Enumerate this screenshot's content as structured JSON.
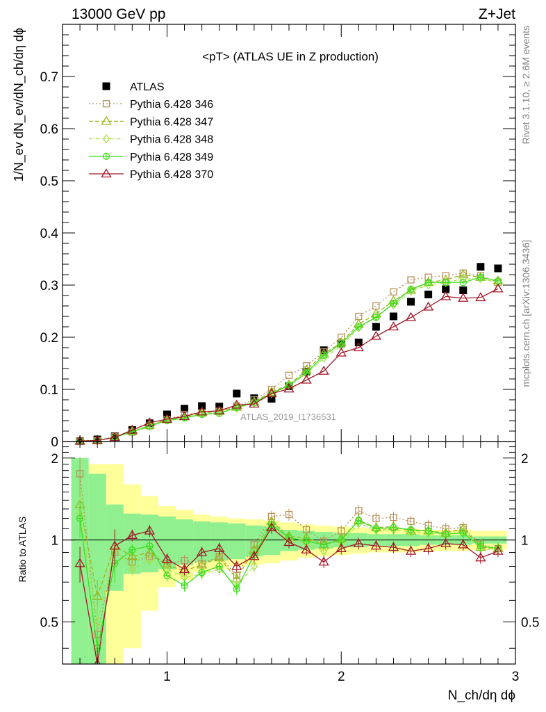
{
  "header": {
    "left": "13000 GeV pp",
    "right": "Z+Jet"
  },
  "side_labels": {
    "rivet": "Rivet 3.1.10, ≥ 2.6M events",
    "mcplots": "mcplots.cern.ch [arXiv:1306.3436]"
  },
  "watermark": "ATLAS_2019_I1736531",
  "chart_data": {
    "type": "scatter",
    "title": "<pT> (ATLAS UE in Z production)",
    "xlabel": "N_ch/dη dϕ",
    "ylabel": "1/N_ev dN_ev/dN_ch/dη dϕ",
    "ratio_ylabel": "Ratio to ATLAS",
    "xlim": [
      0.4,
      3.0
    ],
    "ylim": [
      0,
      0.8
    ],
    "ratio_ylim": [
      0.35,
      2.3
    ],
    "x_ticks": [
      1,
      2,
      3
    ],
    "y_ticks": [
      0,
      0.1,
      0.2,
      0.3,
      0.4,
      0.5,
      0.6,
      0.7
    ],
    "ratio_ticks": [
      0.5,
      1,
      2
    ],
    "x": [
      0.5,
      0.6,
      0.7,
      0.8,
      0.9,
      1.0,
      1.1,
      1.2,
      1.3,
      1.4,
      1.5,
      1.6,
      1.7,
      1.8,
      1.9,
      2.0,
      2.1,
      2.2,
      2.3,
      2.4,
      2.5,
      2.6,
      2.7,
      2.8,
      2.9
    ],
    "legend_position": "top-left",
    "series": [
      {
        "name": "ATLAS",
        "style": "data",
        "color": "#000000",
        "marker": "filled-square",
        "values": [
          0.001,
          0.004,
          0.01,
          0.022,
          0.035,
          0.052,
          0.063,
          0.068,
          0.067,
          0.092,
          0.083,
          0.082,
          0.106,
          0.134,
          0.175,
          0.188,
          0.19,
          0.22,
          0.24,
          0.268,
          0.282,
          0.292,
          0.29,
          0.335,
          0.332
        ]
      },
      {
        "name": "Pythia 6.428 346",
        "style": "mc",
        "color": "#b9925a",
        "marker": "open-square",
        "dash": "2,3",
        "values": [
          0.002,
          0.002,
          0.009,
          0.018,
          0.03,
          0.042,
          0.052,
          0.055,
          0.058,
          0.068,
          0.08,
          0.1,
          0.127,
          0.145,
          0.172,
          0.2,
          0.24,
          0.26,
          0.287,
          0.31,
          0.315,
          0.318,
          0.323,
          0.318,
          0.305
        ],
        "ratio": [
          1.75,
          0.45,
          0.9,
          0.83,
          0.87,
          0.82,
          0.84,
          0.82,
          0.87,
          0.74,
          0.96,
          1.22,
          1.24,
          1.09,
          0.99,
          1.08,
          1.28,
          1.2,
          1.21,
          1.17,
          1.13,
          1.1,
          1.11,
          0.96,
          0.93
        ]
      },
      {
        "name": "Pythia 6.428 347",
        "style": "mc",
        "color": "#9ab81f",
        "marker": "open-triangle",
        "dash": "6,3",
        "values": [
          0.001,
          0.002,
          0.009,
          0.019,
          0.031,
          0.042,
          0.048,
          0.055,
          0.058,
          0.066,
          0.076,
          0.095,
          0.109,
          0.137,
          0.168,
          0.19,
          0.225,
          0.245,
          0.27,
          0.29,
          0.305,
          0.31,
          0.32,
          0.315,
          0.308
        ],
        "ratio": [
          1.35,
          0.62,
          0.95,
          0.87,
          0.9,
          0.81,
          0.77,
          0.81,
          0.86,
          0.72,
          0.92,
          1.17,
          1.03,
          1.02,
          0.96,
          1.01,
          1.18,
          1.11,
          1.12,
          1.08,
          1.08,
          1.06,
          1.1,
          0.94,
          0.93
        ]
      },
      {
        "name": "Pythia 6.428 348",
        "style": "mc",
        "color": "#a5e04a",
        "marker": "open-diamond",
        "dash": "5,2,1,2",
        "values": [
          0.001,
          0.002,
          0.008,
          0.018,
          0.029,
          0.041,
          0.047,
          0.053,
          0.056,
          0.064,
          0.074,
          0.092,
          0.107,
          0.13,
          0.16,
          0.183,
          0.218,
          0.24,
          0.262,
          0.288,
          0.3,
          0.305,
          0.312,
          0.312,
          0.305
        ],
        "ratio": [
          1.25,
          0.5,
          0.92,
          0.78,
          0.84,
          0.78,
          0.73,
          0.75,
          0.78,
          0.68,
          0.8,
          1.13,
          1.0,
          0.97,
          0.91,
          0.97,
          1.15,
          1.09,
          1.09,
          1.07,
          1.06,
          1.05,
          1.07,
          0.93,
          0.92
        ]
      },
      {
        "name": "Pythia 6.428 349",
        "style": "mc",
        "color": "#3ddd1f",
        "marker": "open-circle-cross",
        "dash": "",
        "values": [
          0.001,
          0.002,
          0.008,
          0.019,
          0.03,
          0.04,
          0.045,
          0.052,
          0.054,
          0.065,
          0.075,
          0.092,
          0.108,
          0.132,
          0.165,
          0.188,
          0.22,
          0.238,
          0.265,
          0.292,
          0.305,
          0.305,
          0.305,
          0.315,
          0.308
        ],
        "ratio": [
          1.2,
          0.4,
          0.82,
          0.92,
          0.95,
          0.74,
          0.68,
          0.76,
          0.8,
          0.66,
          0.88,
          1.14,
          1.02,
          0.99,
          0.96,
          1.0,
          1.18,
          1.1,
          1.11,
          1.09,
          1.08,
          1.05,
          1.06,
          0.95,
          0.93
        ]
      },
      {
        "name": "Pythia 6.428 370",
        "style": "mc",
        "color": "#a01626",
        "marker": "open-triangle",
        "dash": "",
        "values": [
          0.001,
          0.002,
          0.008,
          0.022,
          0.036,
          0.043,
          0.048,
          0.057,
          0.059,
          0.07,
          0.072,
          0.092,
          0.101,
          0.118,
          0.135,
          0.17,
          0.18,
          0.202,
          0.22,
          0.238,
          0.258,
          0.278,
          0.275,
          0.276,
          0.293
        ],
        "ratio": [
          0.82,
          0.35,
          0.95,
          1.04,
          1.08,
          0.85,
          0.78,
          0.9,
          0.93,
          0.8,
          0.87,
          1.11,
          0.98,
          0.92,
          0.83,
          0.93,
          0.97,
          0.95,
          0.94,
          0.91,
          0.93,
          0.97,
          0.96,
          0.86,
          0.91
        ]
      }
    ],
    "ratio_bands": {
      "inner": {
        "color": "#90f090",
        "half_width": [
          1.0,
          0.75,
          0.35,
          0.25,
          0.24,
          0.22,
          0.19,
          0.17,
          0.16,
          0.15,
          0.13,
          0.12,
          0.09,
          0.08,
          0.07,
          0.06,
          0.06,
          0.05,
          0.05,
          0.05,
          0.04,
          0.04,
          0.04,
          0.03,
          0.03
        ]
      },
      "outer": {
        "color": "#ffff99",
        "half_width": [
          1.0,
          0.9,
          0.9,
          0.6,
          0.45,
          0.33,
          0.29,
          0.24,
          0.22,
          0.2,
          0.19,
          0.18,
          0.16,
          0.14,
          0.13,
          0.12,
          0.11,
          0.1,
          0.1,
          0.1,
          0.09,
          0.09,
          0.09,
          0.08,
          0.08
        ]
      }
    }
  }
}
